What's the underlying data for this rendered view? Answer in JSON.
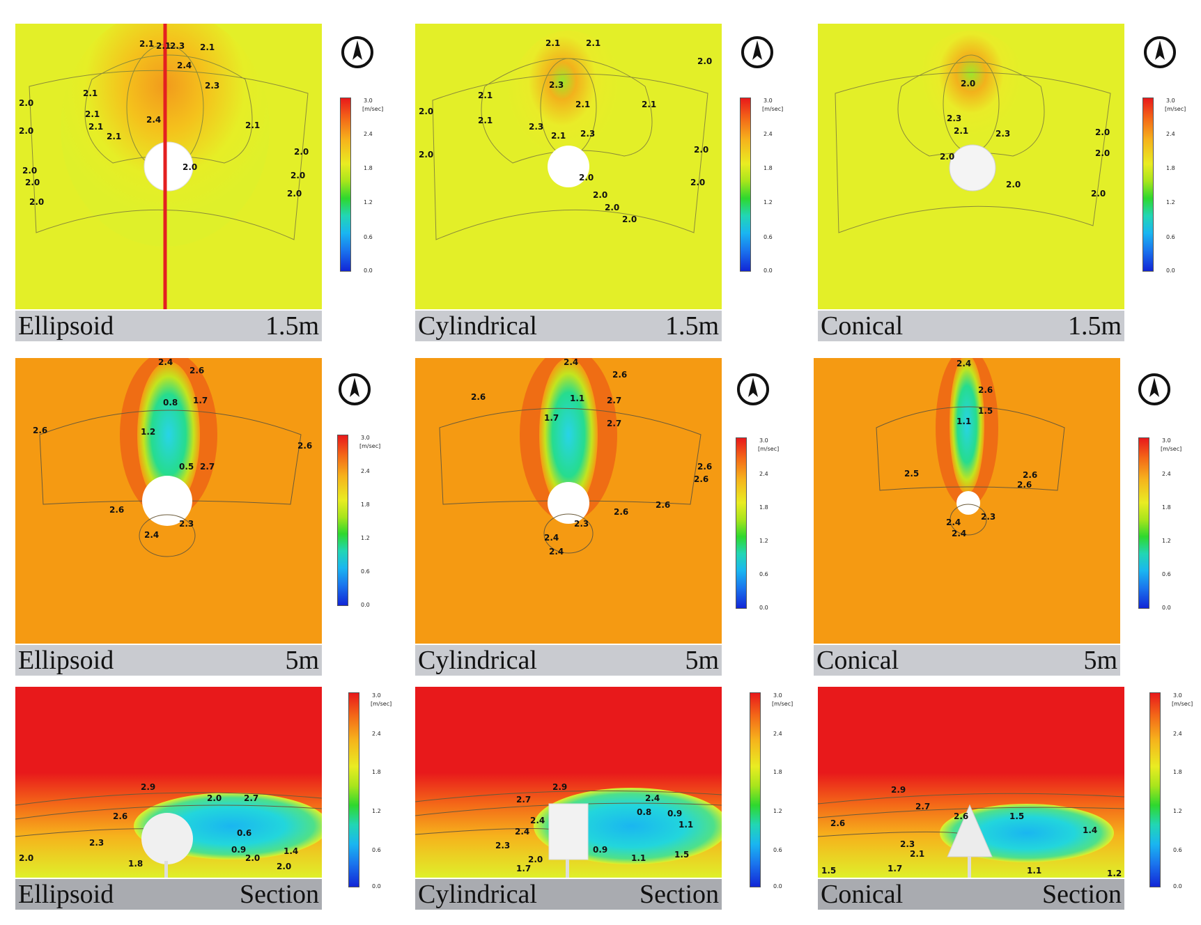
{
  "legend": {
    "unit": "[m/sec]",
    "ticks": [
      "3.0",
      "2.4",
      "1.8",
      "1.2",
      "0.6",
      "0.0"
    ]
  },
  "panels": [
    {
      "id": "ellipsoid-1-5m",
      "shape": "Ellipsoid",
      "level": "1.5m",
      "labels": [
        "2.1",
        "2.1",
        "2.3",
        "2.1",
        "2.4",
        "2.3",
        "2.1",
        "2.1",
        "2.1",
        "2.1",
        "2.4",
        "2.1",
        "2.0",
        "2.0",
        "2.0",
        "2.0",
        "2.0",
        "2.0",
        "2.0",
        "2.0",
        "2.0"
      ]
    },
    {
      "id": "cylindrical-1-5m",
      "shape": "Cylindrical",
      "level": "1.5m",
      "labels": [
        "2.1",
        "2.1",
        "2.0",
        "2.1",
        "2.3",
        "2.1",
        "2.1",
        "2.3",
        "2.1",
        "2.3",
        "2.1",
        "2.0",
        "2.0",
        "2.0",
        "2.0",
        "2.0",
        "2.0",
        "2.0",
        "2.0"
      ]
    },
    {
      "id": "conical-1-5m",
      "shape": "Conical",
      "level": "1.5m",
      "labels": [
        "2.0",
        "2.3",
        "2.1",
        "2.3",
        "2.0",
        "2.0",
        "2.0",
        "2.0",
        "2.0"
      ]
    },
    {
      "id": "ellipsoid-5m",
      "shape": "Ellipsoid",
      "level": "5m",
      "labels": [
        "2.4",
        "2.6",
        "1.7",
        "0.8",
        "1.2",
        "0.5",
        "2.6",
        "2.6",
        "2.6",
        "2.4",
        "2.3",
        "2.7"
      ]
    },
    {
      "id": "cylindrical-5m",
      "shape": "Cylindrical",
      "level": "5m",
      "labels": [
        "2.4",
        "2.6",
        "2.6",
        "1.1",
        "1.7",
        "2.7",
        "2.7",
        "2.6",
        "2.6",
        "2.6",
        "2.6",
        "2.4",
        "2.4",
        "2.3"
      ]
    },
    {
      "id": "conical-5m",
      "shape": "Conical",
      "level": "5m",
      "labels": [
        "2.4",
        "2.6",
        "1.5",
        "1.1",
        "2.5",
        "2.6",
        "2.6",
        "2.3",
        "2.4",
        "2.4"
      ]
    },
    {
      "id": "ellipsoid-section",
      "shape": "Ellipsoid",
      "level": "Section",
      "labels": [
        "2.9",
        "2.7",
        "2.0",
        "2.6",
        "2.3",
        "0.6",
        "0.9",
        "2.0",
        "1.8",
        "2.0",
        "2.0",
        "1.4"
      ]
    },
    {
      "id": "cylindrical-section",
      "shape": "Cylindrical",
      "level": "Section",
      "labels": [
        "2.9",
        "2.7",
        "2.4",
        "2.4",
        "2.4",
        "0.8",
        "0.9",
        "1.1",
        "2.3",
        "2.0",
        "0.9",
        "1.1",
        "1.5",
        "1.7"
      ]
    },
    {
      "id": "conical-section",
      "shape": "Conical",
      "level": "Section",
      "labels": [
        "2.9",
        "2.7",
        "2.6",
        "2.6",
        "2.3",
        "1.5",
        "1.4",
        "2.1",
        "1.7",
        "1.5",
        "1.1",
        "1.2"
      ]
    }
  ]
}
